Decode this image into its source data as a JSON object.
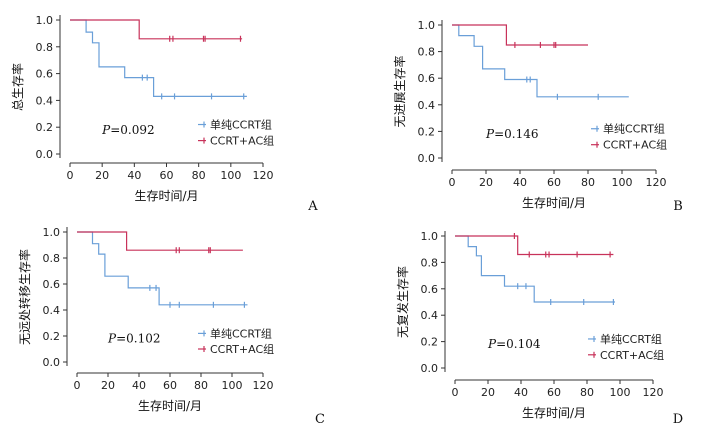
{
  "chart_data": [
    {
      "type": "line",
      "panel": "A",
      "title": "",
      "xlabel": "生存时间/月",
      "ylabel": "总生存率",
      "xlim": [
        0,
        120
      ],
      "ylim": [
        0,
        1
      ],
      "x_ticks": [
        "0",
        "20",
        "40",
        "60",
        "80",
        "100",
        "120"
      ],
      "y_ticks": [
        "0.0",
        "0.2",
        "0.4",
        "0.6",
        "0.8",
        "1.0"
      ],
      "p_value": "=0.092",
      "legend": [
        "单纯CCRT组",
        "CCRT+AC组"
      ],
      "series": [
        {
          "name": "单纯CCRT组",
          "color": "#6a9fd8",
          "steps": [
            [
              0,
              1.0
            ],
            [
              10,
              0.91
            ],
            [
              14,
              0.83
            ],
            [
              18,
              0.65
            ],
            [
              34,
              0.57
            ],
            [
              52,
              0.43
            ],
            [
              110,
              0.43
            ]
          ],
          "censored": [
            [
              45,
              0.57
            ],
            [
              48,
              0.57
            ],
            [
              57,
              0.43
            ],
            [
              65,
              0.43
            ],
            [
              88,
              0.43
            ],
            [
              108,
              0.43
            ]
          ]
        },
        {
          "name": "CCRT+AC组",
          "color": "#c8325a",
          "steps": [
            [
              0,
              1.0
            ],
            [
              43,
              0.86
            ],
            [
              107,
              0.86
            ]
          ],
          "censored": [
            [
              62,
              0.86
            ],
            [
              64,
              0.86
            ],
            [
              83,
              0.86
            ],
            [
              84,
              0.86
            ],
            [
              106,
              0.86
            ]
          ]
        }
      ]
    },
    {
      "type": "line",
      "panel": "B",
      "title": "",
      "xlabel": "生存时间/月",
      "ylabel": "无进展生存率",
      "xlim": [
        0,
        120
      ],
      "ylim": [
        0,
        1
      ],
      "x_ticks": [
        "0",
        "20",
        "40",
        "60",
        "80",
        "100",
        "120"
      ],
      "y_ticks": [
        "0.0",
        "0.2",
        "0.4",
        "0.6",
        "0.8",
        "1.0"
      ],
      "p_value": "=0.146",
      "legend": [
        "单纯CCRT组",
        "CCRT+AC组"
      ],
      "series": [
        {
          "name": "单纯CCRT组",
          "color": "#6a9fd8",
          "steps": [
            [
              0,
              1.0
            ],
            [
              4,
              0.92
            ],
            [
              13,
              0.84
            ],
            [
              18,
              0.67
            ],
            [
              31,
              0.59
            ],
            [
              50,
              0.46
            ],
            [
              104,
              0.46
            ]
          ],
          "censored": [
            [
              44,
              0.59
            ],
            [
              46,
              0.59
            ],
            [
              62,
              0.46
            ],
            [
              86,
              0.46
            ]
          ]
        },
        {
          "name": "CCRT+AC组",
          "color": "#c8325a",
          "steps": [
            [
              0,
              1.0
            ],
            [
              32,
              0.85
            ],
            [
              80,
              0.85
            ]
          ],
          "censored": [
            [
              37,
              0.85
            ],
            [
              52,
              0.85
            ],
            [
              60,
              0.85
            ],
            [
              61,
              0.85
            ]
          ]
        }
      ]
    },
    {
      "type": "line",
      "panel": "C",
      "title": "",
      "xlabel": "生存时间/月",
      "ylabel": "无远处转移生存率",
      "xlim": [
        0,
        120
      ],
      "ylim": [
        0,
        1
      ],
      "x_ticks": [
        "0",
        "20",
        "40",
        "60",
        "80",
        "100",
        "120"
      ],
      "y_ticks": [
        "0.0",
        "0.2",
        "0.4",
        "0.6",
        "0.8",
        "1.0"
      ],
      "p_value": "=0.102",
      "legend": [
        "单纯CCRT组",
        "CCRT+AC组"
      ],
      "series": [
        {
          "name": "单纯CCRT组",
          "color": "#6a9fd8",
          "steps": [
            [
              0,
              1.0
            ],
            [
              10,
              0.91
            ],
            [
              14,
              0.83
            ],
            [
              18,
              0.66
            ],
            [
              33,
              0.57
            ],
            [
              53,
              0.44
            ],
            [
              110,
              0.44
            ]
          ],
          "censored": [
            [
              47,
              0.57
            ],
            [
              51,
              0.57
            ],
            [
              60,
              0.44
            ],
            [
              66,
              0.44
            ],
            [
              88,
              0.44
            ],
            [
              108,
              0.44
            ]
          ]
        },
        {
          "name": "CCRT+AC组",
          "color": "#c8325a",
          "steps": [
            [
              0,
              1.0
            ],
            [
              32,
              0.86
            ],
            [
              107,
              0.86
            ]
          ],
          "censored": [
            [
              64,
              0.86
            ],
            [
              66,
              0.86
            ],
            [
              85,
              0.86
            ],
            [
              86,
              0.86
            ]
          ]
        }
      ]
    },
    {
      "type": "line",
      "panel": "D",
      "title": "",
      "xlabel": "生存时间/月",
      "ylabel": "无复发生存率",
      "xlim": [
        0,
        120
      ],
      "ylim": [
        0,
        1
      ],
      "x_ticks": [
        "0",
        "20",
        "40",
        "60",
        "80",
        "100",
        "120"
      ],
      "y_ticks": [
        "0.0",
        "0.2",
        "0.4",
        "0.6",
        "0.8",
        "1.0"
      ],
      "p_value": "=0.104",
      "legend": [
        "单纯CCRT组",
        "CCRT+AC组"
      ],
      "series": [
        {
          "name": "单纯CCRT组",
          "color": "#6a9fd8",
          "steps": [
            [
              0,
              1.0
            ],
            [
              8,
              0.92
            ],
            [
              13,
              0.85
            ],
            [
              16,
              0.7
            ],
            [
              30,
              0.62
            ],
            [
              48,
              0.5
            ],
            [
              97,
              0.5
            ]
          ],
          "censored": [
            [
              38,
              0.62
            ],
            [
              43,
              0.62
            ],
            [
              58,
              0.5
            ],
            [
              78,
              0.5
            ],
            [
              96,
              0.5
            ]
          ]
        },
        {
          "name": "CCRT+AC组",
          "color": "#c8325a",
          "steps": [
            [
              0,
              1.0
            ],
            [
              38,
              0.86
            ],
            [
              96,
              0.86
            ]
          ],
          "censored": [
            [
              36,
              1.0
            ],
            [
              45,
              0.86
            ],
            [
              55,
              0.86
            ],
            [
              57,
              0.86
            ],
            [
              74,
              0.86
            ],
            [
              94,
              0.86
            ]
          ]
        }
      ]
    }
  ]
}
